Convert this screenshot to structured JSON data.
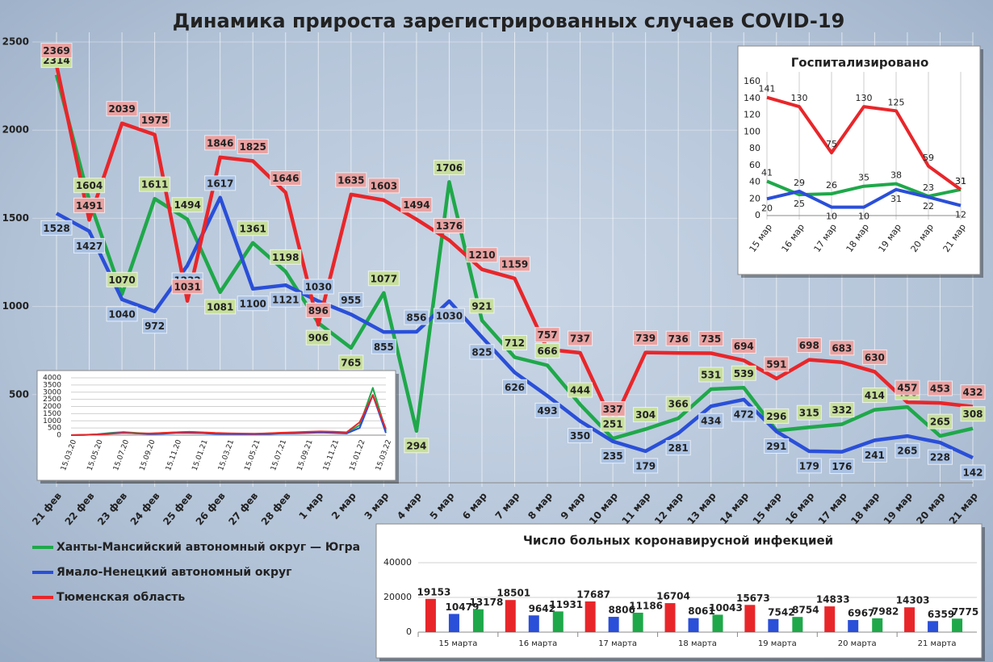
{
  "chart_data": [
    {
      "type": "line",
      "title": "Динамика прироста зарегистрированных случаев COVID-19",
      "categories": [
        "21 фев",
        "22 фев",
        "23 фев",
        "24 фев",
        "25 фев",
        "26 фев",
        "27 фев",
        "28 фев",
        "1 мар",
        "2 мар",
        "3 мар",
        "4 мар",
        "5 мар",
        "6 мар",
        "7 мар",
        "8 мар",
        "9 мар",
        "10 мар",
        "11 мар",
        "12 мар",
        "13 мар",
        "14 мар",
        "15 мар",
        "16 мар",
        "17 мар",
        "18 мар",
        "19 мар",
        "20 мар",
        "21 мар"
      ],
      "series": [
        {
          "name": "Ханты-Мансийский автономный округ — Югра",
          "color": "#1fa84a",
          "values": [
            2314,
            1604,
            1070,
            1611,
            1494,
            1081,
            1361,
            1198,
            906,
            765,
            1077,
            294,
            1706,
            921,
            712,
            666,
            444,
            251,
            304,
            366,
            531,
            539,
            296,
            315,
            332,
            414,
            430,
            265,
            308
          ]
        },
        {
          "name": "Ямало-Ненецкий автономный округ",
          "color": "#2a4fd8",
          "values": [
            1528,
            1427,
            1040,
            972,
            1232,
            1617,
            1100,
            1121,
            1030,
            955,
            855,
            856,
            1030,
            825,
            626,
            493,
            350,
            235,
            179,
            281,
            434,
            472,
            291,
            179,
            176,
            241,
            265,
            228,
            142
          ]
        },
        {
          "name": "Тюменская область",
          "color": "#e8262a",
          "values": [
            2369,
            1491,
            2039,
            1975,
            1031,
            1846,
            1825,
            1646,
            896,
            1635,
            1603,
            1494,
            1376,
            1210,
            1159,
            757,
            737,
            337,
            739,
            736,
            735,
            694,
            591,
            698,
            683,
            630,
            457,
            453,
            432
          ]
        }
      ],
      "ylim": [
        0,
        2500
      ],
      "yticks": [
        500,
        1000,
        1500,
        2000,
        2500
      ],
      "grid": true
    },
    {
      "type": "line",
      "title": "Госпитализировано",
      "categories": [
        "15 мар",
        "16 мар",
        "17 мар",
        "18 мар",
        "19 мар",
        "20 мар",
        "21 мар"
      ],
      "series": [
        {
          "color": "#1fa84a",
          "values": [
            41,
            25,
            26,
            35,
            38,
            23,
            31
          ]
        },
        {
          "color": "#2a4fd8",
          "values": [
            20,
            29,
            10,
            10,
            31,
            22,
            12
          ]
        },
        {
          "color": "#e8262a",
          "values": [
            141,
            130,
            75,
            130,
            125,
            59,
            31
          ]
        }
      ],
      "ylim": [
        0,
        160
      ],
      "yticks": [
        0,
        20,
        40,
        60,
        80,
        100,
        120,
        140,
        160
      ],
      "grid": false
    },
    {
      "type": "line",
      "categories": [
        "15.03.20",
        null,
        "15.05.20",
        null,
        "15.07.20",
        null,
        "15.09.20",
        null,
        "15.11.20",
        null,
        "15.01.21",
        null,
        "15.03.21",
        null,
        "15.05.21",
        null,
        "15.07.21",
        null,
        "15.09.21",
        null,
        "15.11.21",
        null,
        "15.01.22",
        null,
        "15.03.22"
      ],
      "series": [
        {
          "color": "#1fa84a",
          "values": [
            0,
            20,
            60,
            150,
            220,
            150,
            100,
            150,
            200,
            220,
            180,
            120,
            100,
            90,
            90,
            120,
            160,
            180,
            200,
            230,
            200,
            150,
            700,
            3300,
            300
          ]
        },
        {
          "color": "#2a4fd8",
          "values": [
            0,
            10,
            50,
            120,
            180,
            120,
            80,
            100,
            150,
            160,
            140,
            90,
            80,
            60,
            60,
            80,
            120,
            130,
            150,
            180,
            160,
            120,
            500,
            2800,
            150
          ]
        },
        {
          "color": "#e8262a",
          "values": [
            0,
            20,
            40,
            100,
            150,
            130,
            120,
            150,
            200,
            230,
            200,
            150,
            130,
            110,
            100,
            130,
            170,
            200,
            230,
            260,
            240,
            200,
            900,
            2800,
            430
          ]
        }
      ],
      "ylim": [
        0,
        4000
      ],
      "yticks": [
        0,
        500,
        1000,
        1500,
        2000,
        2500,
        3000,
        3500,
        4000
      ],
      "grid": true
    },
    {
      "type": "bar",
      "title": "Число больных  коронавирусной  инфекцией",
      "categories": [
        "15 марта",
        "16 марта",
        "17 марта",
        "18 марта",
        "19 марта",
        "20 марта",
        "21 марта"
      ],
      "series": [
        {
          "color": "#e8262a",
          "values": [
            19153,
            18501,
            17687,
            16704,
            15673,
            14833,
            14303
          ]
        },
        {
          "color": "#2a4fd8",
          "values": [
            10479,
            9642,
            8806,
            8061,
            7542,
            6967,
            6359
          ]
        },
        {
          "color": "#1fa84a",
          "values": [
            13178,
            11931,
            11186,
            10043,
            8754,
            7982,
            7775
          ]
        }
      ],
      "ylim": [
        0,
        40000
      ],
      "yticks": [
        0,
        20000,
        40000
      ],
      "grid": true
    }
  ]
}
